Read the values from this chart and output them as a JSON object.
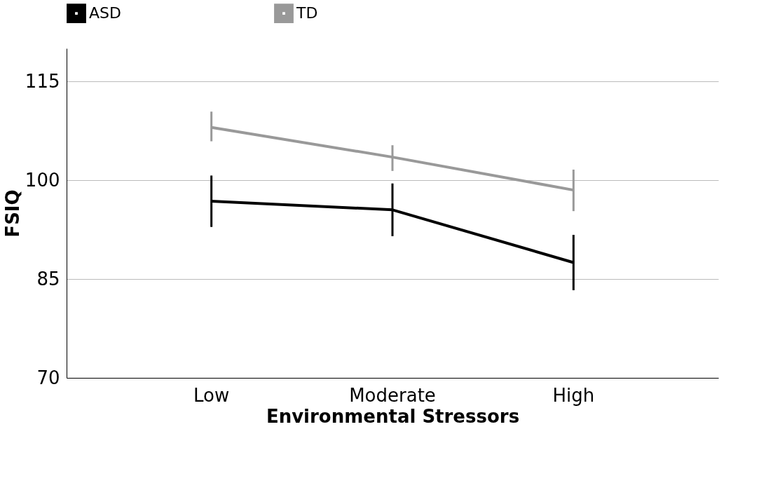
{
  "chart_data": {
    "type": "line",
    "xlabel": "Environmental Stressors",
    "ylabel": "FSIQ",
    "categories": [
      "Low",
      "Moderate",
      "High"
    ],
    "series": [
      {
        "name": "ASD",
        "color": "#000000",
        "values": [
          96.8,
          95.5,
          87.5
        ],
        "errors": [
          [
            92.9,
            100.7
          ],
          [
            91.5,
            99.5
          ],
          [
            83.3,
            91.7
          ]
        ]
      },
      {
        "name": "TD",
        "color": "#999999",
        "values": [
          108.0,
          103.5,
          98.5
        ],
        "errors": [
          [
            105.9,
            110.4
          ],
          [
            101.4,
            105.3
          ],
          [
            95.3,
            101.6
          ]
        ]
      }
    ],
    "ylim": [
      70,
      120
    ],
    "yticks": [
      70,
      85,
      100,
      115
    ],
    "grid": "y",
    "legend": "top",
    "marker": "none",
    "line_style": "solid"
  }
}
